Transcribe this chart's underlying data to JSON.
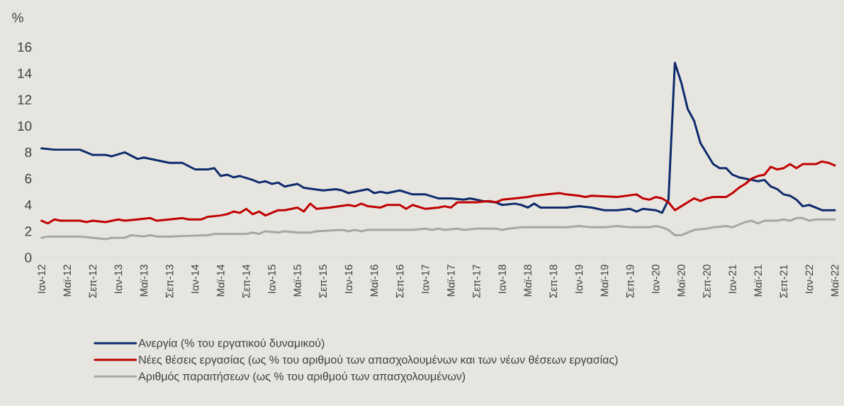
{
  "chart_data": {
    "type": "line",
    "ylabel": "%",
    "legend": "bottom",
    "xlim": [
      "2012-01",
      "2022-05"
    ],
    "ylim": [
      0,
      16
    ],
    "yticks": [
      0,
      2,
      4,
      6,
      8,
      10,
      12,
      14,
      16
    ],
    "xticks": [
      {
        "value": "2012-01",
        "label": "Ιαν-12"
      },
      {
        "value": "2012-05",
        "label": "Μαϊ-12"
      },
      {
        "value": "2012-09",
        "label": "Σεπ-12"
      },
      {
        "value": "2013-01",
        "label": "Ιαν-13"
      },
      {
        "value": "2013-05",
        "label": "Μαϊ-13"
      },
      {
        "value": "2013-09",
        "label": "Σεπ-13"
      },
      {
        "value": "2014-01",
        "label": "Ιαν-14"
      },
      {
        "value": "2014-05",
        "label": "Μαϊ-14"
      },
      {
        "value": "2014-09",
        "label": "Σεπ-14"
      },
      {
        "value": "2015-01",
        "label": "Ιαν-15"
      },
      {
        "value": "2015-05",
        "label": "Μαϊ-15"
      },
      {
        "value": "2015-09",
        "label": "Σεπ-15"
      },
      {
        "value": "2016-01",
        "label": "Ιαν-16"
      },
      {
        "value": "2016-05",
        "label": "Μαϊ-16"
      },
      {
        "value": "2016-09",
        "label": "Σεπ-16"
      },
      {
        "value": "2017-01",
        "label": "Ιαν-17"
      },
      {
        "value": "2017-05",
        "label": "Μαϊ-17"
      },
      {
        "value": "2017-09",
        "label": "Σεπ-17"
      },
      {
        "value": "2018-01",
        "label": "Ιαν-18"
      },
      {
        "value": "2018-05",
        "label": "Μαϊ-18"
      },
      {
        "value": "2018-09",
        "label": "Σεπ-18"
      },
      {
        "value": "2019-01",
        "label": "Ιαν-19"
      },
      {
        "value": "2019-05",
        "label": "Μαϊ-19"
      },
      {
        "value": "2019-09",
        "label": "Σεπ-19"
      },
      {
        "value": "2020-01",
        "label": "Ιαν-20"
      },
      {
        "value": "2020-05",
        "label": "Μαϊ-20"
      },
      {
        "value": "2020-09",
        "label": "Σεπ-20"
      },
      {
        "value": "2021-01",
        "label": "Ιαν-21"
      },
      {
        "value": "2021-05",
        "label": "Μαϊ-21"
      },
      {
        "value": "2021-09",
        "label": "Σεπ-21"
      },
      {
        "value": "2022-01",
        "label": "Ιαν-22"
      },
      {
        "value": "2022-05",
        "label": "Μαϊ-22"
      }
    ],
    "series": [
      {
        "name": "Ανεργία (% του εργατικού δυναμικού)",
        "color": "#0d2a6b",
        "x": [
          "2012-01",
          "2012-03",
          "2012-07",
          "2012-09",
          "2012-11",
          "2012-12",
          "2013-02",
          "2013-04",
          "2013-05",
          "2013-07",
          "2013-09",
          "2013-11",
          "2014-01",
          "2014-03",
          "2014-04",
          "2014-05",
          "2014-06",
          "2014-07",
          "2014-08",
          "2014-10",
          "2014-11",
          "2014-12",
          "2015-01",
          "2015-02",
          "2015-03",
          "2015-05",
          "2015-06",
          "2015-09",
          "2015-11",
          "2015-12",
          "2016-01",
          "2016-03",
          "2016-04",
          "2016-05",
          "2016-06",
          "2016-07",
          "2016-09",
          "2016-11",
          "2017-01",
          "2017-03",
          "2017-05",
          "2017-07",
          "2017-08",
          "2017-10",
          "2017-12",
          "2018-01",
          "2018-03",
          "2018-04",
          "2018-05",
          "2018-06",
          "2018-07",
          "2018-09",
          "2018-11",
          "2019-01",
          "2019-03",
          "2019-05",
          "2019-07",
          "2019-09",
          "2019-10",
          "2019-11",
          "2020-01",
          "2020-02",
          "2020-03",
          "2020-04",
          "2020-05",
          "2020-06",
          "2020-07",
          "2020-08",
          "2020-09",
          "2020-10",
          "2020-11",
          "2020-12",
          "2021-01",
          "2021-02",
          "2021-03",
          "2021-04",
          "2021-05",
          "2021-06",
          "2021-07",
          "2021-08",
          "2021-09",
          "2021-10",
          "2021-11",
          "2021-12",
          "2022-01",
          "2022-02",
          "2022-03",
          "2022-04",
          "2022-05"
        ],
        "values": [
          8.3,
          8.2,
          8.2,
          7.8,
          7.8,
          7.7,
          8.0,
          7.5,
          7.6,
          7.4,
          7.2,
          7.2,
          6.7,
          6.7,
          6.8,
          6.2,
          6.3,
          6.1,
          6.2,
          5.9,
          5.7,
          5.8,
          5.6,
          5.7,
          5.4,
          5.6,
          5.3,
          5.1,
          5.2,
          5.1,
          4.9,
          5.1,
          5.2,
          4.9,
          5.0,
          4.9,
          5.1,
          4.8,
          4.8,
          4.5,
          4.5,
          4.4,
          4.5,
          4.3,
          4.2,
          4.0,
          4.1,
          4.0,
          3.8,
          4.1,
          3.8,
          3.8,
          3.8,
          3.9,
          3.8,
          3.6,
          3.6,
          3.7,
          3.5,
          3.7,
          3.6,
          3.4,
          4.4,
          14.8,
          13.3,
          11.3,
          10.4,
          8.7,
          7.9,
          7.1,
          6.8,
          6.8,
          6.3,
          6.1,
          6.0,
          5.9,
          5.8,
          5.9,
          5.4,
          5.2,
          4.8,
          4.7,
          4.4,
          3.9,
          4.0,
          3.8,
          3.6,
          3.6,
          3.6
        ]
      },
      {
        "name": "Νέες θέσεις εργασίας (ως % του αριθμού των απασχολουμένων και των νέων θέσεων εργασίας)",
        "color": "#c00000",
        "x": [
          "2012-01",
          "2012-02",
          "2012-03",
          "2012-04",
          "2012-07",
          "2012-08",
          "2012-09",
          "2012-11",
          "2013-01",
          "2013-02",
          "2013-04",
          "2013-06",
          "2013-07",
          "2013-09",
          "2013-11",
          "2013-12",
          "2014-02",
          "2014-03",
          "2014-05",
          "2014-06",
          "2014-07",
          "2014-08",
          "2014-09",
          "2014-10",
          "2014-11",
          "2014-12",
          "2015-02",
          "2015-03",
          "2015-05",
          "2015-06",
          "2015-07",
          "2015-08",
          "2015-10",
          "2016-01",
          "2016-02",
          "2016-03",
          "2016-04",
          "2016-06",
          "2016-07",
          "2016-09",
          "2016-10",
          "2016-11",
          "2017-01",
          "2017-03",
          "2017-04",
          "2017-05",
          "2017-06",
          "2017-09",
          "2017-11",
          "2017-12",
          "2018-01",
          "2018-03",
          "2018-05",
          "2018-06",
          "2018-08",
          "2018-10",
          "2018-11",
          "2019-01",
          "2019-02",
          "2019-03",
          "2019-07",
          "2019-10",
          "2019-11",
          "2019-12",
          "2020-01",
          "2020-02",
          "2020-03",
          "2020-04",
          "2020-05",
          "2020-06",
          "2020-07",
          "2020-08",
          "2020-09",
          "2020-10",
          "2020-12",
          "2021-01",
          "2021-02",
          "2021-03",
          "2021-04",
          "2021-05",
          "2021-06",
          "2021-07",
          "2021-08",
          "2021-09",
          "2021-10",
          "2021-11",
          "2021-12",
          "2022-02",
          "2022-03",
          "2022-04",
          "2022-05"
        ],
        "values": [
          2.8,
          2.6,
          2.9,
          2.8,
          2.8,
          2.7,
          2.8,
          2.7,
          2.9,
          2.8,
          2.9,
          3.0,
          2.8,
          2.9,
          3.0,
          2.9,
          2.9,
          3.1,
          3.2,
          3.3,
          3.5,
          3.4,
          3.7,
          3.3,
          3.5,
          3.2,
          3.6,
          3.6,
          3.8,
          3.5,
          4.1,
          3.7,
          3.8,
          4.0,
          3.9,
          4.1,
          3.9,
          3.8,
          4.0,
          4.0,
          3.7,
          4.0,
          3.7,
          3.8,
          3.9,
          3.8,
          4.2,
          4.2,
          4.3,
          4.2,
          4.4,
          4.5,
          4.6,
          4.7,
          4.8,
          4.9,
          4.8,
          4.7,
          4.6,
          4.7,
          4.6,
          4.8,
          4.5,
          4.4,
          4.6,
          4.5,
          4.2,
          3.6,
          3.9,
          4.2,
          4.5,
          4.3,
          4.5,
          4.6,
          4.6,
          4.9,
          5.3,
          5.6,
          6.0,
          6.2,
          6.3,
          6.9,
          6.7,
          6.8,
          7.1,
          6.8,
          7.1,
          7.1,
          7.3,
          7.2,
          7.0
        ]
      },
      {
        "name": "Αριθμός παραιτήσεων (ως % του αριθμού των απασχολουμένων)",
        "color": "#a6a6a6",
        "x": [
          "2012-01",
          "2012-02",
          "2012-07",
          "2012-09",
          "2012-11",
          "2012-12",
          "2013-02",
          "2013-03",
          "2013-05",
          "2013-06",
          "2013-07",
          "2013-09",
          "2014-03",
          "2014-04",
          "2014-09",
          "2014-10",
          "2014-11",
          "2014-12",
          "2015-02",
          "2015-03",
          "2015-05",
          "2015-07",
          "2015-08",
          "2015-12",
          "2016-01",
          "2016-02",
          "2016-03",
          "2016-04",
          "2016-11",
          "2017-01",
          "2017-02",
          "2017-03",
          "2017-04",
          "2017-06",
          "2017-07",
          "2017-09",
          "2017-12",
          "2018-01",
          "2018-02",
          "2018-04",
          "2018-11",
          "2019-01",
          "2019-03",
          "2019-05",
          "2019-07",
          "2019-09",
          "2019-12",
          "2020-01",
          "2020-02",
          "2020-03",
          "2020-04",
          "2020-05",
          "2020-06",
          "2020-07",
          "2020-09",
          "2020-10",
          "2020-12",
          "2021-01",
          "2021-02",
          "2021-03",
          "2021-04",
          "2021-05",
          "2021-06",
          "2021-08",
          "2021-09",
          "2021-10",
          "2021-11",
          "2021-12",
          "2022-01",
          "2022-02",
          "2022-05"
        ],
        "values": [
          1.5,
          1.6,
          1.6,
          1.5,
          1.4,
          1.5,
          1.5,
          1.7,
          1.6,
          1.7,
          1.6,
          1.6,
          1.7,
          1.8,
          1.8,
          1.9,
          1.8,
          2.0,
          1.9,
          2.0,
          1.9,
          1.9,
          2.0,
          2.1,
          2.0,
          2.1,
          2.0,
          2.1,
          2.1,
          2.2,
          2.1,
          2.2,
          2.1,
          2.2,
          2.1,
          2.2,
          2.2,
          2.1,
          2.2,
          2.3,
          2.3,
          2.4,
          2.3,
          2.3,
          2.4,
          2.3,
          2.3,
          2.4,
          2.3,
          2.1,
          1.7,
          1.7,
          1.9,
          2.1,
          2.2,
          2.3,
          2.4,
          2.3,
          2.5,
          2.7,
          2.8,
          2.6,
          2.8,
          2.8,
          2.9,
          2.8,
          3.0,
          3.0,
          2.8,
          2.9,
          2.9
        ]
      }
    ]
  }
}
